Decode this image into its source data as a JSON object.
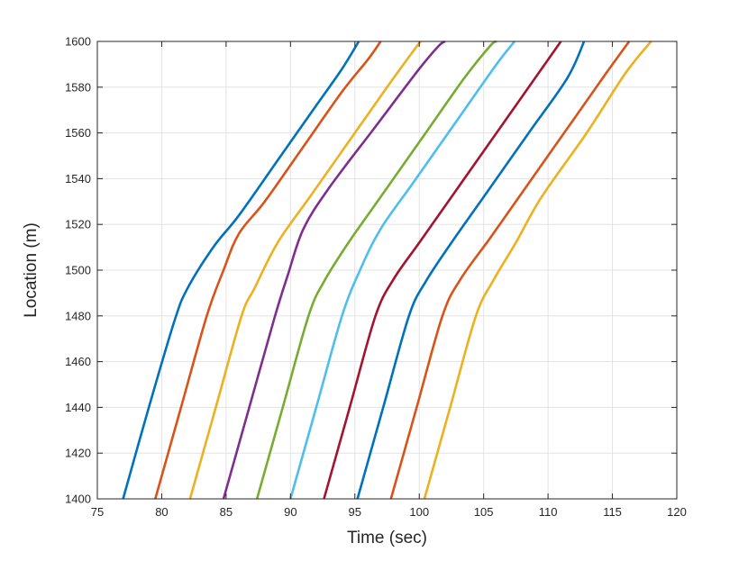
{
  "chart_data": {
    "type": "line",
    "title": "",
    "xlabel": "Time (sec)",
    "ylabel": "Location (m)",
    "xlim": [
      75,
      120
    ],
    "ylim": [
      1400,
      1600
    ],
    "xticks": [
      75,
      80,
      85,
      90,
      95,
      100,
      105,
      110,
      115,
      120
    ],
    "yticks": [
      1400,
      1420,
      1440,
      1460,
      1480,
      1500,
      1520,
      1540,
      1560,
      1580,
      1600
    ],
    "grid": true,
    "legend": "none",
    "series": [
      {
        "color": "#0072BD",
        "points": [
          [
            77.0,
            1400
          ],
          [
            79.0,
            1440
          ],
          [
            81.0,
            1478
          ],
          [
            82.0,
            1492
          ],
          [
            84.0,
            1510
          ],
          [
            86.0,
            1524
          ],
          [
            89.0,
            1548
          ],
          [
            92.0,
            1572
          ],
          [
            94.0,
            1588
          ],
          [
            95.3,
            1600
          ]
        ]
      },
      {
        "color": "#D95319",
        "points": [
          [
            79.5,
            1400
          ],
          [
            81.5,
            1440
          ],
          [
            83.5,
            1480
          ],
          [
            84.8,
            1500
          ],
          [
            86.0,
            1516
          ],
          [
            88.0,
            1530
          ],
          [
            91.0,
            1554
          ],
          [
            94.0,
            1578
          ],
          [
            96.0,
            1592
          ],
          [
            97.0,
            1600
          ]
        ]
      },
      {
        "color": "#EDB120",
        "points": [
          [
            82.2,
            1400
          ],
          [
            84.2,
            1440
          ],
          [
            86.2,
            1480
          ],
          [
            87.2,
            1492
          ],
          [
            89.0,
            1512
          ],
          [
            91.5,
            1532
          ],
          [
            94.5,
            1556
          ],
          [
            97.5,
            1580
          ],
          [
            99.3,
            1594
          ],
          [
            100.1,
            1600
          ]
        ]
      },
      {
        "color": "#7E2F8E",
        "points": [
          [
            84.8,
            1400
          ],
          [
            86.8,
            1440
          ],
          [
            88.8,
            1480
          ],
          [
            89.8,
            1498
          ],
          [
            91.0,
            1518
          ],
          [
            93.0,
            1536
          ],
          [
            96.5,
            1562
          ],
          [
            100.0,
            1588
          ],
          [
            101.5,
            1598
          ],
          [
            102.0,
            1600
          ]
        ]
      },
      {
        "color": "#77AC30",
        "points": [
          [
            87.4,
            1400
          ],
          [
            89.4,
            1440
          ],
          [
            91.4,
            1480
          ],
          [
            92.6,
            1495
          ],
          [
            94.5,
            1512
          ],
          [
            97.0,
            1532
          ],
          [
            100.5,
            1560
          ],
          [
            103.5,
            1584
          ],
          [
            105.5,
            1598
          ],
          [
            106.0,
            1600
          ]
        ]
      },
      {
        "color": "#4DBEEE",
        "points": [
          [
            90.0,
            1400
          ],
          [
            92.0,
            1440
          ],
          [
            94.0,
            1480
          ],
          [
            95.4,
            1500
          ],
          [
            97.0,
            1518
          ],
          [
            99.5,
            1538
          ],
          [
            103.0,
            1566
          ],
          [
            106.0,
            1590
          ],
          [
            107.4,
            1600
          ]
        ]
      },
      {
        "color": "#A2142F",
        "points": [
          [
            92.6,
            1400
          ],
          [
            94.6,
            1440
          ],
          [
            96.6,
            1480
          ],
          [
            98.0,
            1496
          ],
          [
            100.0,
            1512
          ],
          [
            102.5,
            1532
          ],
          [
            106.0,
            1560
          ],
          [
            109.0,
            1584
          ],
          [
            110.5,
            1596
          ],
          [
            111.0,
            1600
          ]
        ]
      },
      {
        "color": "#0072BD",
        "points": [
          [
            95.2,
            1400
          ],
          [
            97.2,
            1440
          ],
          [
            99.2,
            1480
          ],
          [
            100.5,
            1495
          ],
          [
            102.5,
            1512
          ],
          [
            105.0,
            1532
          ],
          [
            108.5,
            1560
          ],
          [
            111.5,
            1584
          ],
          [
            112.8,
            1600
          ]
        ]
      },
      {
        "color": "#D95319",
        "points": [
          [
            97.8,
            1400
          ],
          [
            99.8,
            1440
          ],
          [
            101.8,
            1480
          ],
          [
            103.2,
            1496
          ],
          [
            105.5,
            1514
          ],
          [
            108.0,
            1534
          ],
          [
            111.5,
            1562
          ],
          [
            114.5,
            1586
          ],
          [
            116.3,
            1600
          ]
        ]
      },
      {
        "color": "#EDB120",
        "points": [
          [
            100.4,
            1400
          ],
          [
            102.4,
            1440
          ],
          [
            104.4,
            1480
          ],
          [
            105.8,
            1496
          ],
          [
            107.5,
            1512
          ],
          [
            109.5,
            1532
          ],
          [
            113.0,
            1560
          ],
          [
            116.0,
            1586
          ],
          [
            118.0,
            1600
          ]
        ]
      }
    ]
  }
}
